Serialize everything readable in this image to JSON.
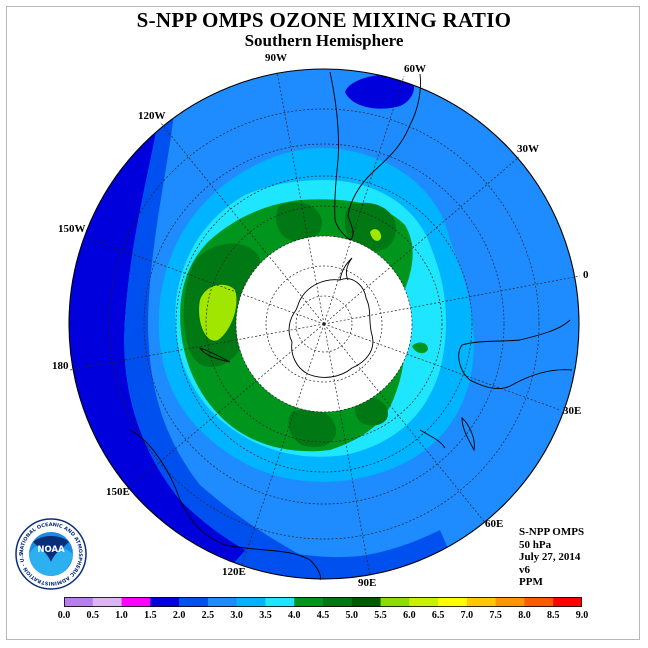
{
  "title": "S-NPP OMPS OZONE MIXING RATIO",
  "subtitle": "Southern Hemisphere",
  "longitude_labels": [
    "90W",
    "60W",
    "30W",
    "120W",
    "150W",
    "0",
    "180",
    "30E",
    "150E",
    "60E",
    "120E",
    "90E"
  ],
  "info": {
    "instrument": "S-NPP OMPS",
    "pressure": "50 hPa",
    "date": "July 27, 2014",
    "version": "v6",
    "units": "PPM"
  },
  "logo": {
    "text": "NOAA",
    "ring_text": "NATIONAL OCEANIC AND ATMOSPHERIC ADMINISTRATION · U.S. DEPARTMENT OF COMMERCE"
  },
  "colorbar": {
    "ticks": [
      "0.0",
      "0.5",
      "1.0",
      "1.5",
      "2.0",
      "2.5",
      "3.0",
      "3.5",
      "4.0",
      "4.5",
      "5.0",
      "5.5",
      "6.0",
      "6.5",
      "7.0",
      "7.5",
      "8.0",
      "8.5",
      "9.0"
    ],
    "colors": [
      "#b87fe8",
      "#dcb4f0",
      "#ff00ff",
      "#0000dc",
      "#0050f0",
      "#1e8cff",
      "#00b4ff",
      "#1ee6ff",
      "#00961e",
      "#007814",
      "#005a00",
      "#8cdc00",
      "#c8f000",
      "#ffff00",
      "#ffc800",
      "#ff9600",
      "#ff5a00",
      "#ff0000",
      "#8c5a3c"
    ]
  },
  "colors": {
    "ring_blue": "#1e8cff",
    "dark_blue": "#0000dc",
    "mid_blue": "#0050f0",
    "light_blue": "#00b4ff",
    "cyan": "#1ee6ff",
    "green": "#00961e",
    "dark_green": "#007814",
    "yellow_green": "#a0e600"
  }
}
